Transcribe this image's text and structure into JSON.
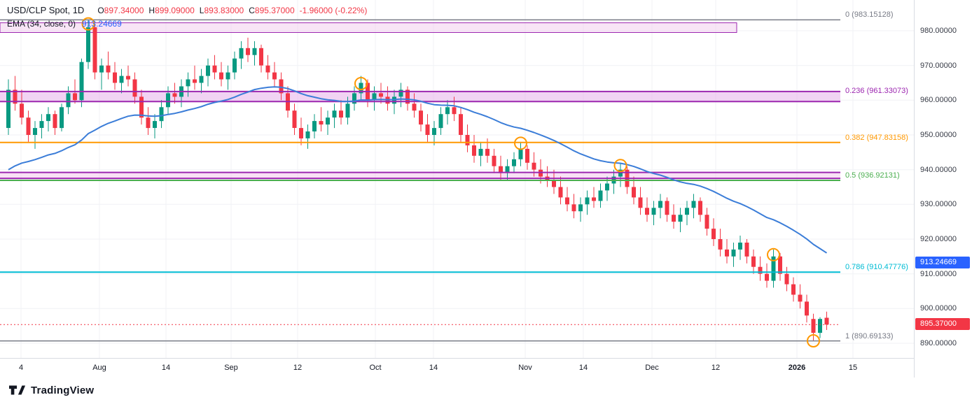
{
  "header": {
    "symbol": "USD/CLP Spot, 1D",
    "ohlc": {
      "o_label": "O",
      "o": "897.34000",
      "h_label": "H",
      "h": "899.09000",
      "l_label": "L",
      "l": "893.83000",
      "c_label": "C",
      "c": "895.37000",
      "change": "-1.96000 (-0.22%)"
    },
    "indicator": {
      "name": "EMA (34, close, 0)",
      "value": "913.24669"
    }
  },
  "footer": {
    "logo_text": "TradingView"
  },
  "chart_data": {
    "type": "candlestick",
    "title": "USD/CLP Spot, 1D",
    "timeframe": "1D",
    "ylim": [
      885.77,
      988.86
    ],
    "grid": true,
    "candle_up_color": "#089981",
    "candle_down_color": "#f23645",
    "marker_color": "#ff9800",
    "price_ticks": [
      {
        "label": "980.00000",
        "value": 980
      },
      {
        "label": "970.00000",
        "value": 970
      },
      {
        "label": "960.00000",
        "value": 960
      },
      {
        "label": "950.00000",
        "value": 950
      },
      {
        "label": "940.00000",
        "value": 940
      },
      {
        "label": "930.00000",
        "value": 930
      },
      {
        "label": "920.00000",
        "value": 920
      },
      {
        "label": "910.00000",
        "value": 910
      },
      {
        "label": "900.00000",
        "value": 900
      },
      {
        "label": "890.00000",
        "value": 890
      }
    ],
    "time_ticks": [
      {
        "label": "4",
        "x": 30
      },
      {
        "label": "Aug",
        "x": 142
      },
      {
        "label": "14",
        "x": 237
      },
      {
        "label": "Sep",
        "x": 330
      },
      {
        "label": "12",
        "x": 425
      },
      {
        "label": "Oct",
        "x": 536
      },
      {
        "label": "14",
        "x": 619
      },
      {
        "label": "Nov",
        "x": 750
      },
      {
        "label": "14",
        "x": 833
      },
      {
        "label": "Dec",
        "x": 931
      },
      {
        "label": "12",
        "x": 1022
      },
      {
        "label": "2026",
        "x": 1138,
        "major": true
      },
      {
        "label": "15",
        "x": 1218
      }
    ],
    "ema": {
      "period": 34,
      "source": "close",
      "offset": 0,
      "value": 913.24669,
      "seed": 940,
      "color": "#3b7dd8"
    },
    "supply_zone": {
      "top": 982.3,
      "bottom": 979.5,
      "x_end": 1052,
      "fill": "#f0c6ec",
      "border": "#9c27b0"
    },
    "fib_levels": [
      {
        "label": "0 (983.15128)",
        "value": 983.15128,
        "color": "#787b86",
        "style": "line"
      },
      {
        "label": "0.236 (961.33073)",
        "value": 961.33073,
        "color": "#9c27b0",
        "style": "band",
        "band_top": 962.5,
        "band_bottom": 959.6,
        "fill": "#e3a7e8"
      },
      {
        "label": "0.382 (947.83158)",
        "value": 947.83158,
        "color": "#ff9800",
        "style": "line"
      },
      {
        "label": "0.5 (936.92131)",
        "value": 936.92131,
        "color": "#4caf50",
        "style": "band_line",
        "band_top": 939.2,
        "band_bottom": 937.5,
        "band_border": "#9c27b0",
        "fill": "#f3c3ec"
      },
      {
        "label": "0.786 (910.47776)",
        "value": 910.47776,
        "color": "#00bcd4",
        "style": "line"
      },
      {
        "label": "1 (890.69133)",
        "value": 890.69133,
        "color": "#787b86",
        "style": "line"
      }
    ],
    "markers": [
      {
        "index": 12,
        "price": 982.0
      },
      {
        "index": 53,
        "price": 964.8
      },
      {
        "index": 77,
        "price": 947.6
      },
      {
        "index": 92,
        "price": 941.2
      },
      {
        "index": 115,
        "price": 915.5
      },
      {
        "index": 121,
        "price": 890.7
      }
    ],
    "last_price": {
      "label": "895.37000",
      "value": 895.37,
      "color": "#f23645"
    },
    "ema_badge": {
      "label": "913.24669",
      "value": 913.24669,
      "color": "#2962ff"
    },
    "candles": [
      [
        952,
        966,
        950,
        963
      ],
      [
        963,
        967,
        957,
        959
      ],
      [
        959,
        963,
        953,
        955
      ],
      [
        955,
        957,
        948,
        950
      ],
      [
        950,
        954,
        946,
        952
      ],
      [
        952,
        956,
        949,
        954
      ],
      [
        954,
        958,
        951,
        956
      ],
      [
        956,
        957,
        950,
        952
      ],
      [
        952,
        959,
        951,
        958
      ],
      [
        958,
        964,
        956,
        962
      ],
      [
        962,
        966,
        959,
        960
      ],
      [
        960,
        972,
        958,
        971
      ],
      [
        971,
        983.2,
        969,
        981
      ],
      [
        981,
        982,
        966,
        968
      ],
      [
        968,
        972,
        963,
        970
      ],
      [
        970,
        974,
        966,
        968
      ],
      [
        968,
        971,
        963,
        965
      ],
      [
        965,
        969,
        962,
        967
      ],
      [
        967,
        970,
        964,
        966
      ],
      [
        966,
        968,
        959,
        961
      ],
      [
        961,
        963,
        953,
        955
      ],
      [
        955,
        958,
        950,
        952
      ],
      [
        952,
        956,
        949,
        954
      ],
      [
        954,
        960,
        952,
        958
      ],
      [
        958,
        964,
        956,
        962
      ],
      [
        962,
        965,
        959,
        961
      ],
      [
        961,
        966,
        958,
        964
      ],
      [
        964,
        968,
        961,
        966
      ],
      [
        966,
        970,
        963,
        965
      ],
      [
        965,
        969,
        962,
        967
      ],
      [
        967,
        972,
        964,
        970
      ],
      [
        970,
        973,
        966,
        968
      ],
      [
        968,
        971,
        964,
        966
      ],
      [
        966,
        970,
        963,
        968
      ],
      [
        968,
        974,
        966,
        972
      ],
      [
        972,
        977,
        969,
        975
      ],
      [
        975,
        978,
        971,
        973
      ],
      [
        973,
        977,
        970,
        975
      ],
      [
        975,
        976,
        968,
        970
      ],
      [
        970,
        973,
        966,
        968
      ],
      [
        968,
        971,
        964,
        966
      ],
      [
        966,
        968,
        960,
        962
      ],
      [
        962,
        964,
        955,
        957
      ],
      [
        957,
        959,
        950,
        952
      ],
      [
        952,
        955,
        947,
        949
      ],
      [
        949,
        953,
        946,
        951
      ],
      [
        951,
        956,
        949,
        954
      ],
      [
        954,
        958,
        951,
        953
      ],
      [
        953,
        957,
        950,
        955
      ],
      [
        955,
        959,
        952,
        957
      ],
      [
        957,
        960,
        953,
        955
      ],
      [
        955,
        961,
        953,
        959
      ],
      [
        959,
        964,
        957,
        962
      ],
      [
        962,
        967,
        960,
        965
      ],
      [
        965,
        966,
        958,
        960
      ],
      [
        960,
        964,
        957,
        962
      ],
      [
        962,
        965,
        959,
        961
      ],
      [
        961,
        964,
        957,
        959
      ],
      [
        959,
        963,
        956,
        961
      ],
      [
        961,
        965,
        958,
        963
      ],
      [
        963,
        964,
        957,
        959
      ],
      [
        959,
        962,
        955,
        957
      ],
      [
        957,
        959,
        951,
        953
      ],
      [
        953,
        956,
        948,
        950
      ],
      [
        950,
        954,
        947,
        952
      ],
      [
        952,
        958,
        950,
        956
      ],
      [
        956,
        960,
        953,
        958
      ],
      [
        958,
        961,
        954,
        956
      ],
      [
        956,
        958,
        948,
        950
      ],
      [
        950,
        953,
        945,
        947
      ],
      [
        947,
        950,
        942,
        944
      ],
      [
        944,
        948,
        941,
        946
      ],
      [
        946,
        949,
        942,
        944
      ],
      [
        944,
        946,
        939,
        941
      ],
      [
        941,
        944,
        937,
        939
      ],
      [
        939,
        943,
        937,
        941
      ],
      [
        941,
        945,
        939,
        943
      ],
      [
        943,
        948,
        941,
        946
      ],
      [
        946,
        947,
        940,
        942
      ],
      [
        942,
        945,
        938,
        940
      ],
      [
        940,
        943,
        936,
        938
      ],
      [
        938,
        941,
        935,
        937
      ],
      [
        937,
        940,
        933,
        935
      ],
      [
        935,
        938,
        930,
        932
      ],
      [
        932,
        935,
        928,
        930
      ],
      [
        930,
        933,
        926,
        928
      ],
      [
        928,
        932,
        925,
        930
      ],
      [
        930,
        934,
        927,
        932
      ],
      [
        932,
        935,
        929,
        931
      ],
      [
        931,
        936,
        929,
        934
      ],
      [
        934,
        938,
        931,
        936
      ],
      [
        936,
        940,
        933,
        938
      ],
      [
        938,
        942,
        935,
        940
      ],
      [
        940,
        941,
        933,
        935
      ],
      [
        935,
        938,
        930,
        932
      ],
      [
        932,
        935,
        927,
        929
      ],
      [
        929,
        932,
        925,
        927
      ],
      [
        927,
        931,
        924,
        929
      ],
      [
        929,
        933,
        926,
        931
      ],
      [
        931,
        932,
        925,
        927
      ],
      [
        927,
        930,
        923,
        925
      ],
      [
        925,
        929,
        922,
        927
      ],
      [
        927,
        931,
        924,
        929
      ],
      [
        929,
        933,
        926,
        931
      ],
      [
        931,
        932,
        925,
        927
      ],
      [
        927,
        929,
        921,
        923
      ],
      [
        923,
        926,
        918,
        920
      ],
      [
        920,
        923,
        915,
        917
      ],
      [
        917,
        920,
        913,
        915
      ],
      [
        915,
        919,
        912,
        917
      ],
      [
        917,
        921,
        914,
        919
      ],
      [
        919,
        920,
        913,
        915
      ],
      [
        915,
        917,
        910,
        912
      ],
      [
        912,
        915,
        908,
        910
      ],
      [
        910,
        913,
        906,
        908
      ],
      [
        908,
        917,
        906,
        915
      ],
      [
        915,
        916,
        908,
        910
      ],
      [
        910,
        912,
        905,
        907
      ],
      [
        907,
        909,
        902,
        904
      ],
      [
        904,
        907,
        900,
        902
      ],
      [
        902,
        904,
        896,
        898
      ],
      [
        897,
        898.5,
        890.7,
        893
      ],
      [
        893,
        897.5,
        891.5,
        897
      ],
      [
        897.34,
        899.09,
        893.83,
        895.37
      ]
    ]
  }
}
